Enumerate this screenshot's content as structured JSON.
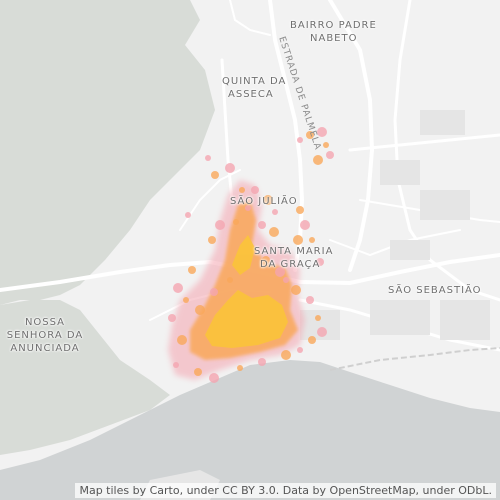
{
  "map": {
    "places": [
      {
        "id": "bairro-padre-nabeto",
        "lines": [
          "BAIRRO PADRE",
          "NABETO"
        ]
      },
      {
        "id": "quinta-da-asseca",
        "lines": [
          "QUINTA DA",
          "ASSECA"
        ]
      },
      {
        "id": "sao-juliao",
        "lines": [
          "SÃO JULIÃO"
        ]
      },
      {
        "id": "santa-maria-da-graca",
        "lines": [
          "SANTA MARIA",
          "DA GRAÇA"
        ]
      },
      {
        "id": "sao-sebastiao",
        "lines": [
          "SÃO SEBASTIÃO"
        ]
      },
      {
        "id": "nossa-senhora-da-anunciada",
        "lines": [
          "NOSSA",
          "SENHORA DA",
          "ANUNCIADA"
        ]
      }
    ],
    "roads": [
      {
        "id": "estrada-de-palmela",
        "label": "ESTRADA DE PALMELA"
      }
    ],
    "attribution": "Map tiles by Carto, under CC BY 3.0. Data by OpenStreetMap, under ODbL.",
    "colors": {
      "background": "#f2f2f2",
      "park": "#d8dcd7",
      "water": "#d0d3d4",
      "road": "#ffffff",
      "heat_outer": "#f4a5b0",
      "heat_mid": "#f9a85a",
      "heat_core": "#fbc43a"
    }
  }
}
